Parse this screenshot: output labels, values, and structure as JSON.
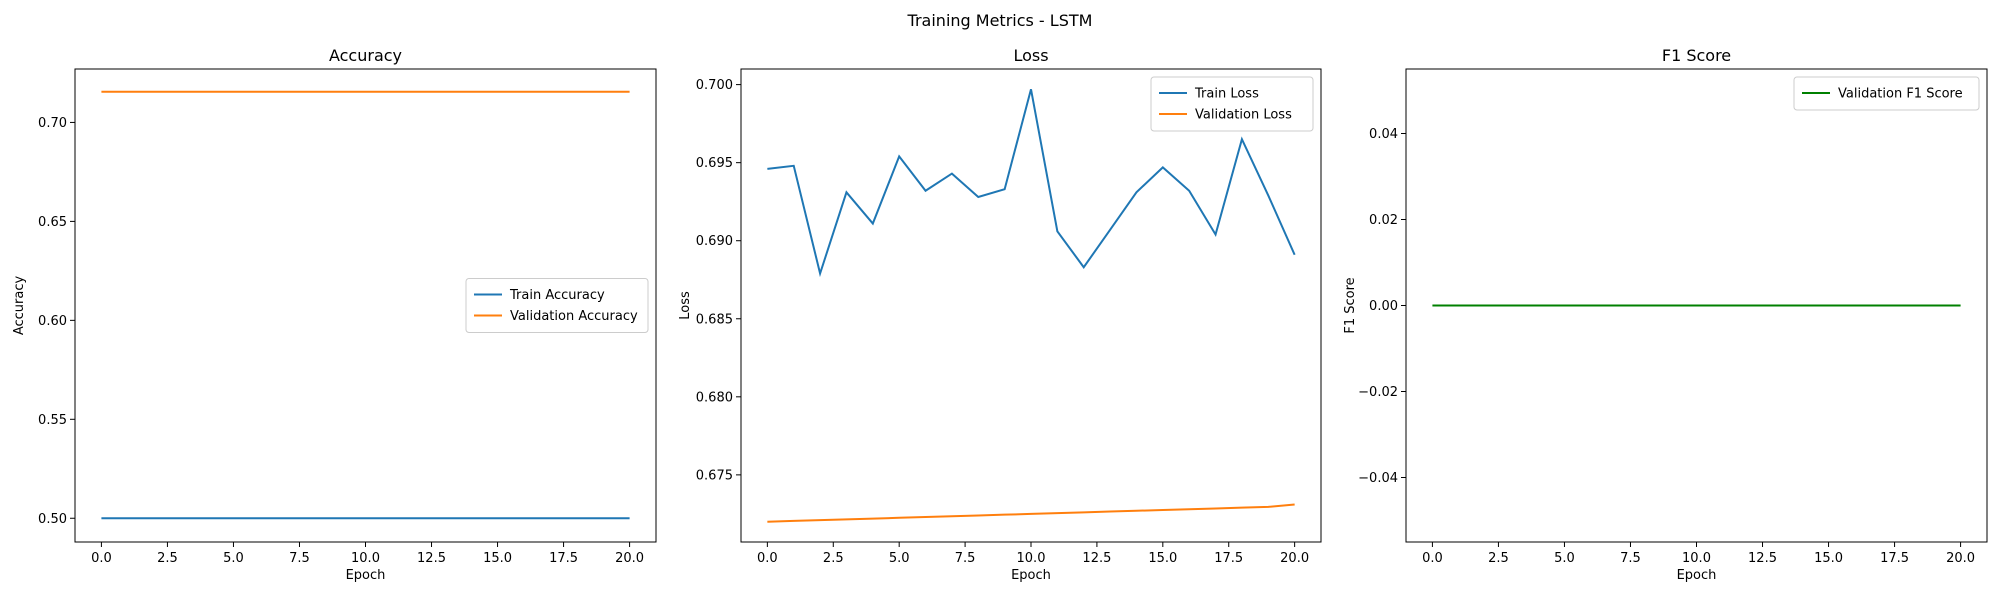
{
  "figure_title": "Training Metrics - LSTM",
  "chart_data": [
    {
      "type": "line",
      "title": "Accuracy",
      "xlabel": "Epoch",
      "ylabel": "Accuracy",
      "xlim": [
        -1,
        21
      ],
      "ylim": [
        0.488,
        0.727
      ],
      "xticks": [
        0.0,
        2.5,
        5.0,
        7.5,
        10.0,
        12.5,
        15.0,
        17.5,
        20.0
      ],
      "xtick_labels": [
        "0.0",
        "2.5",
        "5.0",
        "7.5",
        "10.0",
        "12.5",
        "15.0",
        "17.5",
        "20.0"
      ],
      "yticks": [
        0.5,
        0.55,
        0.6,
        0.65,
        0.7
      ],
      "ytick_labels": [
        "0.50",
        "0.55",
        "0.60",
        "0.65",
        "0.70"
      ],
      "legend_position": "center-right",
      "grid": false,
      "x": [
        0,
        1,
        2,
        3,
        4,
        5,
        6,
        7,
        8,
        9,
        10,
        11,
        12,
        13,
        14,
        15,
        16,
        17,
        18,
        19,
        20
      ],
      "series": [
        {
          "name": "Train Accuracy",
          "color": "#1f77b4",
          "values": [
            0.5,
            0.5,
            0.5,
            0.5,
            0.5,
            0.5,
            0.5,
            0.5,
            0.5,
            0.5,
            0.5,
            0.5,
            0.5,
            0.5,
            0.5,
            0.5,
            0.5,
            0.5,
            0.5,
            0.5,
            0.5
          ]
        },
        {
          "name": "Validation Accuracy",
          "color": "#ff7f0e",
          "values": [
            0.7155,
            0.7155,
            0.7155,
            0.7155,
            0.7155,
            0.7155,
            0.7155,
            0.7155,
            0.7155,
            0.7155,
            0.7155,
            0.7155,
            0.7155,
            0.7155,
            0.7155,
            0.7155,
            0.7155,
            0.7155,
            0.7155,
            0.7155,
            0.7155
          ]
        }
      ]
    },
    {
      "type": "line",
      "title": "Loss",
      "xlabel": "Epoch",
      "ylabel": "Loss",
      "xlim": [
        -1,
        21
      ],
      "ylim": [
        0.6707,
        0.701
      ],
      "xticks": [
        0.0,
        2.5,
        5.0,
        7.5,
        10.0,
        12.5,
        15.0,
        17.5,
        20.0
      ],
      "xtick_labels": [
        "0.0",
        "2.5",
        "5.0",
        "7.5",
        "10.0",
        "12.5",
        "15.0",
        "17.5",
        "20.0"
      ],
      "yticks": [
        0.675,
        0.68,
        0.685,
        0.69,
        0.695,
        0.7
      ],
      "ytick_labels": [
        "0.675",
        "0.680",
        "0.685",
        "0.690",
        "0.695",
        "0.700"
      ],
      "legend_position": "top-right",
      "grid": false,
      "x": [
        0,
        1,
        2,
        3,
        4,
        5,
        6,
        7,
        8,
        9,
        10,
        11,
        12,
        13,
        14,
        15,
        16,
        17,
        18,
        19,
        20
      ],
      "series": [
        {
          "name": "Train Loss",
          "color": "#1f77b4",
          "values": [
            0.6946,
            0.6948,
            0.6879,
            0.6931,
            0.6911,
            0.6954,
            0.6932,
            0.6943,
            0.6928,
            0.6933,
            0.6997,
            0.6906,
            0.6883,
            0.6907,
            0.6931,
            0.6947,
            0.6932,
            0.6904,
            0.6965,
            0.6929,
            0.6891
          ]
        },
        {
          "name": "Validation Loss",
          "color": "#ff7f0e",
          "values": [
            0.672,
            0.67205,
            0.6721,
            0.67215,
            0.6722,
            0.67225,
            0.6723,
            0.67235,
            0.6724,
            0.67245,
            0.6725,
            0.67255,
            0.6726,
            0.67265,
            0.6727,
            0.67275,
            0.6728,
            0.67285,
            0.6729,
            0.67295,
            0.6731
          ]
        }
      ]
    },
    {
      "type": "line",
      "title": "F1 Score",
      "xlabel": "Epoch",
      "ylabel": "F1 Score",
      "xlim": [
        -1,
        21
      ],
      "ylim": [
        -0.055,
        0.055
      ],
      "xticks": [
        0.0,
        2.5,
        5.0,
        7.5,
        10.0,
        12.5,
        15.0,
        17.5,
        20.0
      ],
      "xtick_labels": [
        "0.0",
        "2.5",
        "5.0",
        "7.5",
        "10.0",
        "12.5",
        "15.0",
        "17.5",
        "20.0"
      ],
      "yticks": [
        -0.04,
        -0.02,
        0.0,
        0.02,
        0.04
      ],
      "ytick_labels": [
        "−0.04",
        "−0.02",
        "0.00",
        "0.02",
        "0.04"
      ],
      "legend_position": "top-right",
      "grid": false,
      "x": [
        0,
        1,
        2,
        3,
        4,
        5,
        6,
        7,
        8,
        9,
        10,
        11,
        12,
        13,
        14,
        15,
        16,
        17,
        18,
        19,
        20
      ],
      "series": [
        {
          "name": "Validation F1 Score",
          "color": "#008000",
          "values": [
            0,
            0,
            0,
            0,
            0,
            0,
            0,
            0,
            0,
            0,
            0,
            0,
            0,
            0,
            0,
            0,
            0,
            0,
            0,
            0,
            0
          ]
        }
      ]
    }
  ]
}
